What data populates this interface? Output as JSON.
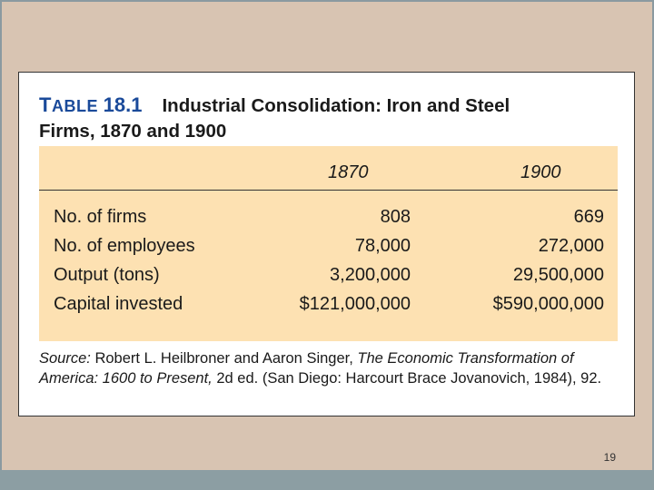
{
  "table": {
    "label_prefix": "T",
    "label_rest": "ABLE",
    "number": "18.1",
    "title_line1": "Industrial Consolidation: Iron and Steel",
    "title_line2": "Firms, 1870 and 1900",
    "columns": [
      "1870",
      "1900"
    ],
    "rows": [
      {
        "label": "No. of firms",
        "v1870": "808",
        "v1900": "669"
      },
      {
        "label": "No. of employees",
        "v1870": "78,000",
        "v1900": "272,000"
      },
      {
        "label": "Output (tons)",
        "v1870": "3,200,000",
        "v1900": "29,500,000"
      },
      {
        "label": "Capital invested",
        "v1870": "$121,000,000",
        "v1900": "$590,000,000"
      }
    ]
  },
  "source": {
    "label": "Source:",
    "authors": "Robert L. Heilbroner and Aaron Singer,",
    "book_title": "The Economic Transformation of America: 1600 to Present,",
    "rest": "2d ed. (San Diego: Harcourt Brace Jovanovich, 1984), 92."
  },
  "slide_number": "19"
}
